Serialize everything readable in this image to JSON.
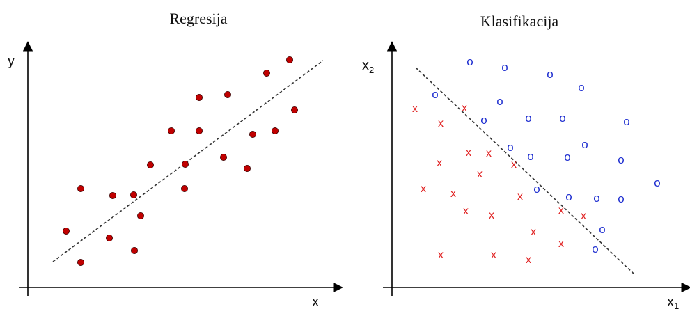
{
  "regression": {
    "title": "Regresija",
    "y_label": "y",
    "x_label": "x",
    "point_color": "#c00000",
    "points": [
      [
        116,
        271
      ],
      [
        95,
        332
      ],
      [
        116,
        377
      ],
      [
        157,
        342
      ],
      [
        162,
        281
      ],
      [
        192,
        280
      ],
      [
        202,
        310
      ],
      [
        193,
        360
      ],
      [
        216,
        237
      ],
      [
        246,
        188
      ],
      [
        265,
        271
      ],
      [
        266,
        236
      ],
      [
        286,
        188
      ],
      [
        286,
        140
      ],
      [
        321,
        226
      ],
      [
        327,
        136
      ],
      [
        355,
        242
      ],
      [
        363,
        193
      ],
      [
        383,
        105
      ],
      [
        395,
        188
      ],
      [
        416,
        86
      ],
      [
        423,
        158
      ]
    ]
  },
  "classification": {
    "title": "Klasifikacija",
    "y_label": "x",
    "y_sub": "2",
    "x_label": "x",
    "x_sub": "1",
    "x_marker": "x",
    "o_marker": "o",
    "x_color": "#e02020",
    "o_color": "#1f2fd0",
    "x_points": [
      [
        596,
        156
      ],
      [
        633,
        177
      ],
      [
        667,
        155
      ],
      [
        631,
        234
      ],
      [
        673,
        219
      ],
      [
        702,
        220
      ],
      [
        689,
        250
      ],
      [
        738,
        236
      ],
      [
        608,
        271
      ],
      [
        651,
        278
      ],
      [
        669,
        303
      ],
      [
        706,
        309
      ],
      [
        747,
        282
      ],
      [
        806,
        302
      ],
      [
        838,
        310
      ],
      [
        766,
        333
      ],
      [
        806,
        350
      ],
      [
        633,
        366
      ],
      [
        709,
        366
      ],
      [
        759,
        373
      ]
    ],
    "o_points": [
      [
        675,
        89
      ],
      [
        725,
        97
      ],
      [
        790,
        107
      ],
      [
        835,
        126
      ],
      [
        625,
        136
      ],
      [
        718,
        146
      ],
      [
        695,
        173
      ],
      [
        759,
        170
      ],
      [
        808,
        170
      ],
      [
        900,
        175
      ],
      [
        733,
        212
      ],
      [
        762,
        225
      ],
      [
        840,
        208
      ],
      [
        815,
        226
      ],
      [
        892,
        230
      ],
      [
        944,
        263
      ],
      [
        771,
        272
      ],
      [
        817,
        283
      ],
      [
        857,
        285
      ],
      [
        892,
        286
      ],
      [
        865,
        330
      ],
      [
        855,
        358
      ]
    ]
  }
}
